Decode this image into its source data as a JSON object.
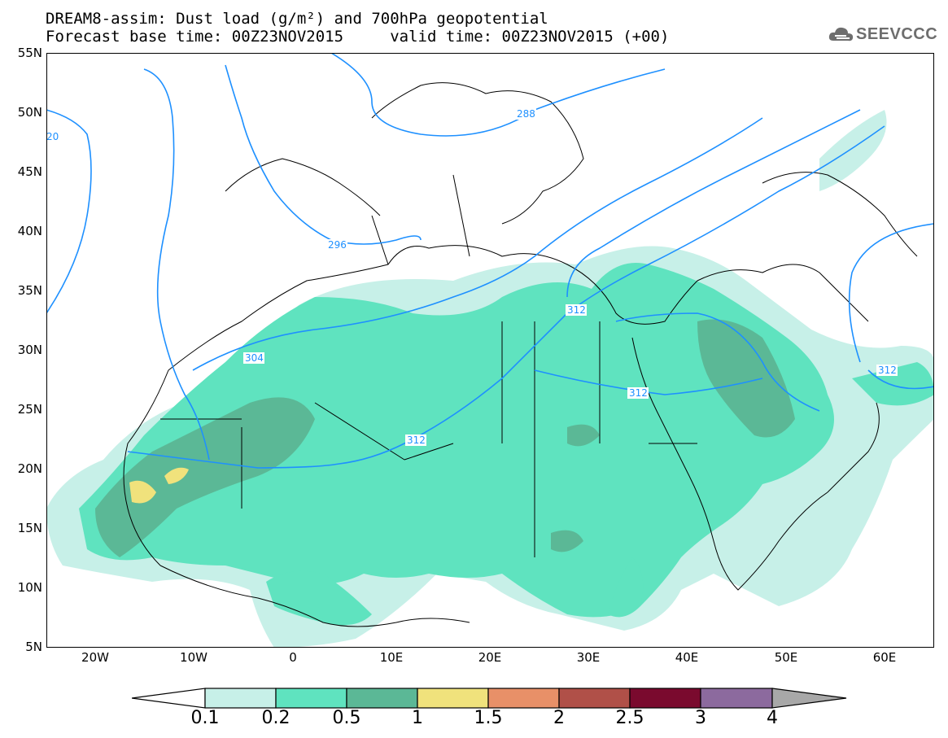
{
  "title": {
    "line1": "DREAM8-assim: Dust load (g/m²) and 700hPa geopotential",
    "line2": "Forecast base time: 00Z23NOV2015     valid time: 00Z23NOV2015 (+00)"
  },
  "logo": {
    "text": "SEEVCCC",
    "icon": "cloud-icon",
    "color": "#6e6e6e"
  },
  "map": {
    "lat_labels": [
      "55N",
      "50N",
      "45N",
      "40N",
      "35N",
      "30N",
      "25N",
      "20N",
      "15N",
      "10N",
      "5N"
    ],
    "lon_labels": [
      "20W",
      "10W",
      "0",
      "10E",
      "20E",
      "30E",
      "40E",
      "50E",
      "60E"
    ],
    "extent": {
      "lon": [
        -25,
        65
      ],
      "lat": [
        5,
        55
      ]
    },
    "contour_color": "#1e90ff",
    "contour_labels": [
      "20",
      "288",
      "296",
      "304",
      "312",
      "312",
      "312",
      "312"
    ]
  },
  "colorbar": {
    "labels": [
      "0.1",
      "0.2",
      "0.5",
      "1",
      "1.5",
      "2",
      "2.5",
      "3",
      "4"
    ],
    "colors": [
      "#ffffff",
      "#c7f0e8",
      "#5fe3bf",
      "#5bb896",
      "#f0e27c",
      "#e89068",
      "#b05048",
      "#7a0a2e",
      "#8c6a9e",
      "#a8a8a8"
    ]
  }
}
